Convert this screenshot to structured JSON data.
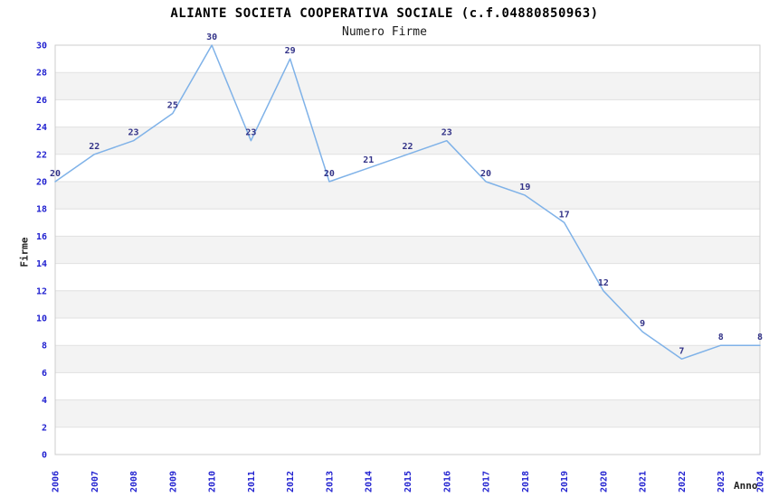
{
  "chart_data": {
    "type": "line",
    "title": "ALIANTE SOCIETA COOPERATIVA SOCIALE (c.f.04880850963)",
    "subtitle": "Numero Firme",
    "xlabel": "Anno",
    "ylabel": "Firme",
    "x": [
      2006,
      2007,
      2008,
      2009,
      2010,
      2011,
      2012,
      2013,
      2014,
      2015,
      2016,
      2017,
      2018,
      2019,
      2020,
      2021,
      2022,
      2023,
      2024
    ],
    "series": [
      {
        "name": "Numero Firme",
        "values": [
          20,
          22,
          23,
          25,
          30,
          23,
          29,
          20,
          21,
          22,
          23,
          20,
          19,
          17,
          12,
          9,
          7,
          8,
          8
        ]
      }
    ],
    "ylim": [
      0,
      30
    ],
    "ytick_step": 2,
    "y_ticks": [
      0,
      2,
      4,
      6,
      8,
      10,
      12,
      14,
      16,
      18,
      20,
      22,
      24,
      26,
      28,
      30
    ],
    "grid": "alternating-horizontal-bands",
    "legend": "none",
    "point_labels_visible": true,
    "colors": {
      "line": "#7FB2E8",
      "point_label": "#333388",
      "tick_label": "#2222D0",
      "band": "#F3F3F3",
      "gridline": "#E1E1E1",
      "plot_border": "#CCCCCC",
      "title": "#000000",
      "subtitle": "#1A1A1A",
      "axis_label": "#222222"
    }
  }
}
